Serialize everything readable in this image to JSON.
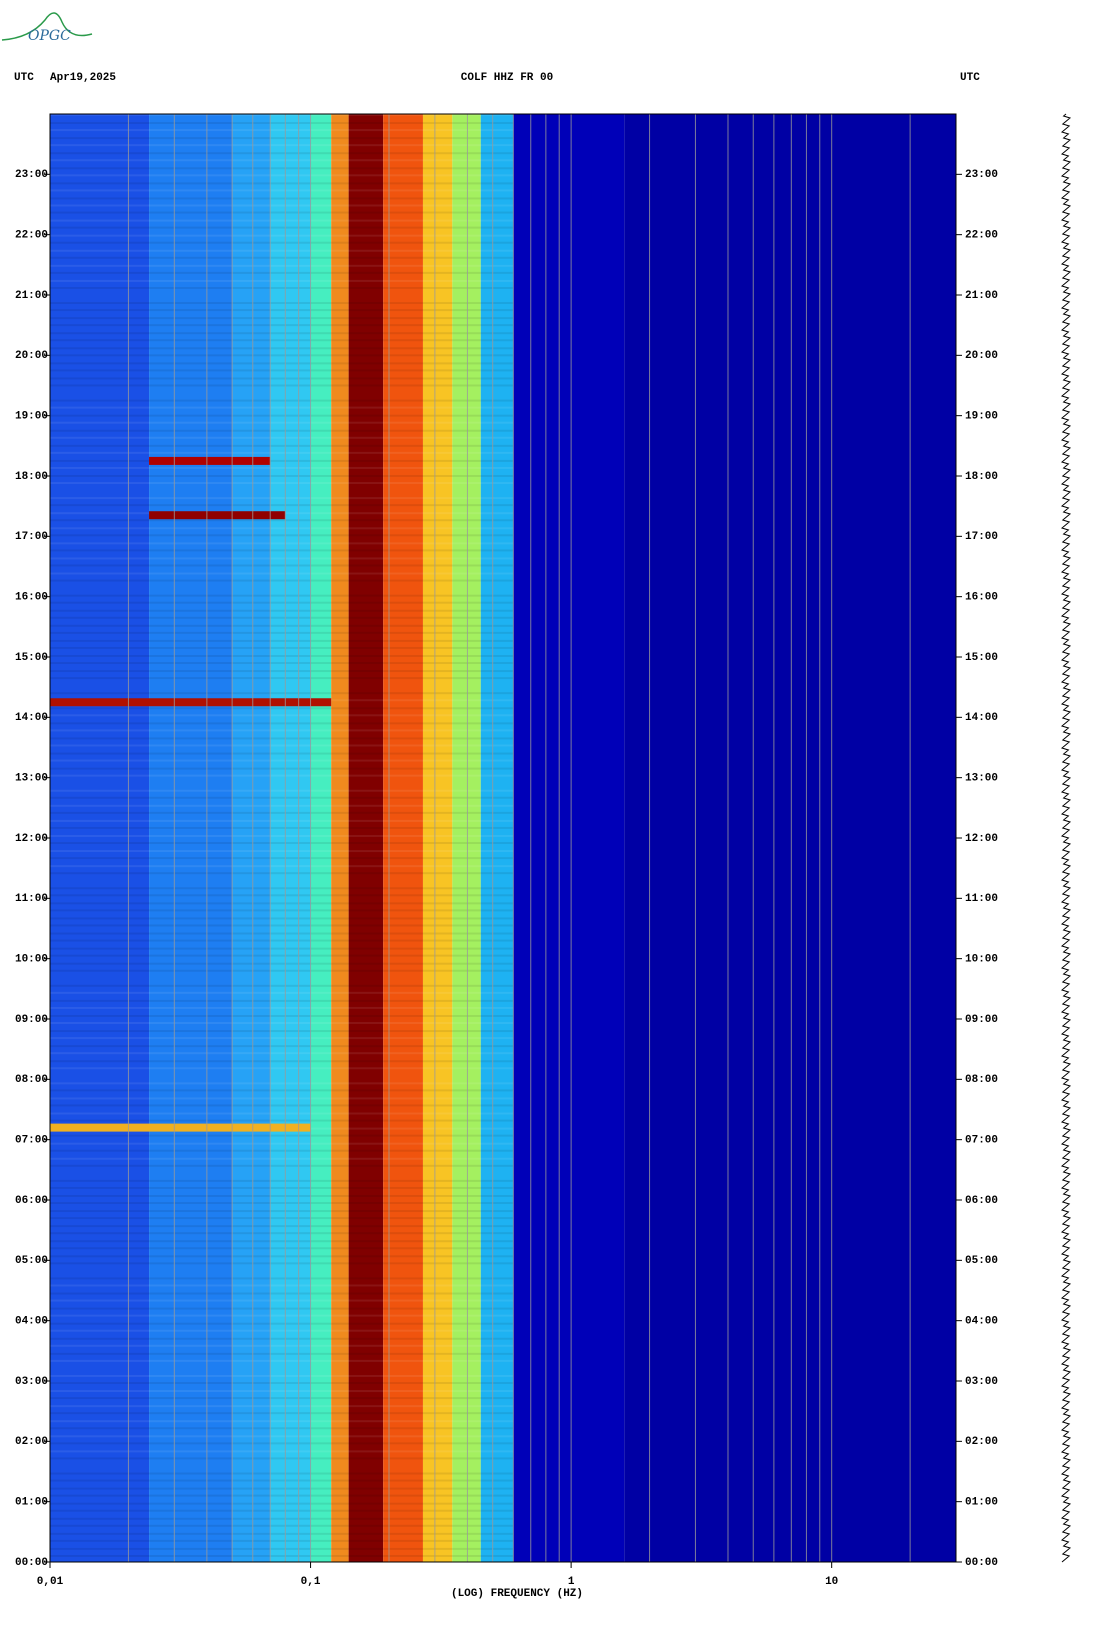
{
  "logo": "OPGC",
  "chart_data": {
    "type": "spectrogram",
    "header_left": "UTC",
    "date": "Apr19,2025",
    "title": "COLF HHZ FR 00",
    "header_right": "UTC",
    "xlabel": "(LOG) FREQUENCY (HZ)",
    "xscale": "log",
    "xlim": [
      0.01,
      30
    ],
    "xticks": [
      {
        "value": 0.01,
        "label": "0,01"
      },
      {
        "value": 0.1,
        "label": "0,1"
      },
      1,
      10
    ],
    "xgrid": [
      0.02,
      0.03,
      0.04,
      0.05,
      0.06,
      0.07,
      0.08,
      0.09,
      0.1,
      0.2,
      0.3,
      0.4,
      0.5,
      0.6,
      0.7,
      0.8,
      0.9,
      1,
      2,
      3,
      4,
      5,
      6,
      7,
      8,
      9,
      10,
      20
    ],
    "ylim": [
      0,
      24
    ],
    "yticks": [
      {
        "value": 0,
        "label": "00:00"
      },
      {
        "value": 1,
        "label": "01:00"
      },
      {
        "value": 2,
        "label": "02:00"
      },
      {
        "value": 3,
        "label": "03:00"
      },
      {
        "value": 4,
        "label": "04:00"
      },
      {
        "value": 5,
        "label": "05:00"
      },
      {
        "value": 6,
        "label": "06:00"
      },
      {
        "value": 7,
        "label": "07:00"
      },
      {
        "value": 8,
        "label": "08:00"
      },
      {
        "value": 9,
        "label": "09:00"
      },
      {
        "value": 10,
        "label": "10:00"
      },
      {
        "value": 11,
        "label": "11:00"
      },
      {
        "value": 12,
        "label": "12:00"
      },
      {
        "value": 13,
        "label": "13:00"
      },
      {
        "value": 14,
        "label": "14:00"
      },
      {
        "value": 15,
        "label": "15:00"
      },
      {
        "value": 16,
        "label": "16:00"
      },
      {
        "value": 17,
        "label": "17:00"
      },
      {
        "value": 18,
        "label": "18:00"
      },
      {
        "value": 19,
        "label": "19:00"
      },
      {
        "value": 20,
        "label": "20:00"
      },
      {
        "value": 21,
        "label": "21:00"
      },
      {
        "value": 22,
        "label": "22:00"
      },
      {
        "value": 23,
        "label": "23:00"
      }
    ],
    "bands": [
      {
        "fmin": 0.01,
        "fmax": 0.024,
        "color": "#1a50e6"
      },
      {
        "fmin": 0.024,
        "fmax": 0.05,
        "color": "#1e7ef2"
      },
      {
        "fmin": 0.05,
        "fmax": 0.07,
        "color": "#26a2f6"
      },
      {
        "fmin": 0.07,
        "fmax": 0.1,
        "color": "#30c8f2"
      },
      {
        "fmin": 0.1,
        "fmax": 0.12,
        "color": "#46eec0"
      },
      {
        "fmin": 0.12,
        "fmax": 0.14,
        "color": "#f08a1e"
      },
      {
        "fmin": 0.14,
        "fmax": 0.19,
        "color": "#800000"
      },
      {
        "fmin": 0.19,
        "fmax": 0.27,
        "color": "#f0540e"
      },
      {
        "fmin": 0.27,
        "fmax": 0.35,
        "color": "#f8c424"
      },
      {
        "fmin": 0.35,
        "fmax": 0.45,
        "color": "#a4f060"
      },
      {
        "fmin": 0.45,
        "fmax": 0.6,
        "color": "#1eb2f2"
      },
      {
        "fmin": 0.6,
        "fmax": 1.6,
        "color": "#0000b8"
      },
      {
        "fmin": 1.6,
        "fmax": 30,
        "color": "#0000a4"
      }
    ],
    "events": [
      {
        "time": 7.2,
        "fmin": 0.01,
        "fmax": 0.1,
        "color": "#f0b020"
      },
      {
        "time": 14.25,
        "fmin": 0.01,
        "fmax": 0.12,
        "color": "#b01000"
      },
      {
        "time": 17.35,
        "fmin": 0.024,
        "fmax": 0.08,
        "color": "#900000"
      },
      {
        "time": 18.25,
        "fmin": 0.024,
        "fmax": 0.07,
        "color": "#b00000"
      }
    ]
  }
}
